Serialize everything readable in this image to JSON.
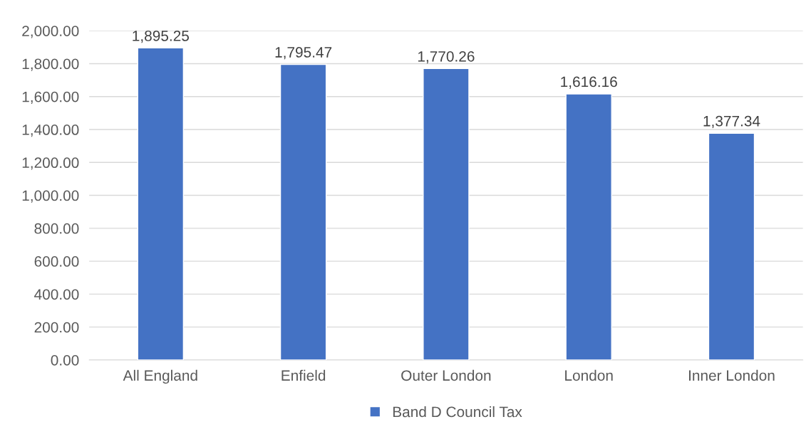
{
  "chart_data": {
    "type": "bar",
    "categories": [
      "All England",
      "Enfield",
      "Outer London",
      "London",
      "Inner London"
    ],
    "series": [
      {
        "name": "Band D Council Tax",
        "color": "#4472c4",
        "values": [
          1895.25,
          1795.47,
          1770.26,
          1616.16,
          1377.34
        ],
        "value_labels": [
          "1,895.25",
          "1,795.47",
          "1,770.26",
          "1,616.16",
          "1,377.34"
        ]
      }
    ],
    "ylim": [
      0,
      2000
    ],
    "yticks": [
      {
        "value": 0,
        "label": "0.00"
      },
      {
        "value": 200,
        "label": "200.00"
      },
      {
        "value": 400,
        "label": "400.00"
      },
      {
        "value": 600,
        "label": "600.00"
      },
      {
        "value": 800,
        "label": "800.00"
      },
      {
        "value": 1000,
        "label": "1,000.00"
      },
      {
        "value": 1200,
        "label": "1,200.00"
      },
      {
        "value": 1400,
        "label": "1,400.00"
      },
      {
        "value": 1600,
        "label": "1,600.00"
      },
      {
        "value": 1800,
        "label": "1,800.00"
      },
      {
        "value": 2000,
        "label": "2,000.00"
      }
    ],
    "grid": "y",
    "legend": "bottom"
  }
}
